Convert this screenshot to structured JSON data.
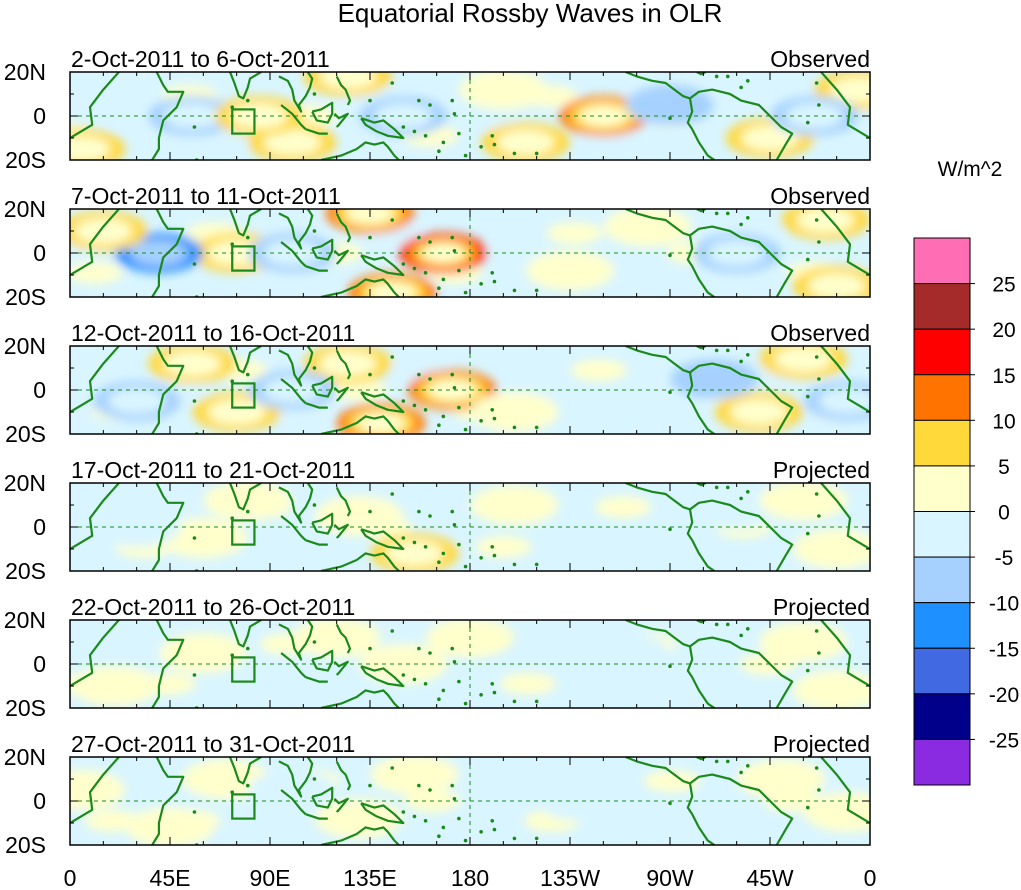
{
  "title": "Equatorial Rossby Waves in OLR",
  "units_label": "W/m^2",
  "lat_labels": [
    "20N",
    "0",
    "20S"
  ],
  "lon_labels": [
    "0",
    "45E",
    "90E",
    "135E",
    "180",
    "135W",
    "90W",
    "45W",
    "0"
  ],
  "panels": [
    {
      "date_range": "2-Oct-2011 to 6-Oct-2011",
      "type": "Observed",
      "strength": 1.0,
      "anomalies": [
        {
          "lon": 240,
          "lat": 0,
          "val": 14
        },
        {
          "lon": 125,
          "lat": 18,
          "val": 10
        },
        {
          "lon": 100,
          "lat": -12,
          "val": 8
        },
        {
          "lon": 205,
          "lat": -12,
          "val": 8
        },
        {
          "lon": 55,
          "lat": 0,
          "val": -9
        },
        {
          "lon": 150,
          "lat": 0,
          "val": -7
        },
        {
          "lon": 195,
          "lat": 12,
          "val": 5
        },
        {
          "lon": 315,
          "lat": -10,
          "val": 6
        },
        {
          "lon": 355,
          "lat": 12,
          "val": 7
        },
        {
          "lon": 335,
          "lat": 0,
          "val": -6
        },
        {
          "lon": 5,
          "lat": -15,
          "val": 8
        },
        {
          "lon": 85,
          "lat": 0,
          "val": 9
        },
        {
          "lon": 270,
          "lat": 5,
          "val": -5
        }
      ]
    },
    {
      "date_range": "7-Oct-2011 to 11-Oct-2011",
      "type": "Observed",
      "strength": 1.0,
      "anomalies": [
        {
          "lon": 168,
          "lat": 0,
          "val": 18
        },
        {
          "lon": 135,
          "lat": 18,
          "val": 11
        },
        {
          "lon": 145,
          "lat": -18,
          "val": 12
        },
        {
          "lon": 75,
          "lat": 0,
          "val": 9
        },
        {
          "lon": 40,
          "lat": 0,
          "val": -10
        },
        {
          "lon": 100,
          "lat": 0,
          "val": -8
        },
        {
          "lon": 225,
          "lat": -8,
          "val": 5
        },
        {
          "lon": 340,
          "lat": 15,
          "val": 10
        },
        {
          "lon": 345,
          "lat": -15,
          "val": 9
        },
        {
          "lon": 300,
          "lat": 0,
          "val": -6
        },
        {
          "lon": 15,
          "lat": 10,
          "val": 6
        },
        {
          "lon": 260,
          "lat": 12,
          "val": 4
        }
      ]
    },
    {
      "date_range": "12-Oct-2011 to 16-Oct-2011",
      "type": "Observed",
      "strength": 1.0,
      "anomalies": [
        {
          "lon": 172,
          "lat": 0,
          "val": 14
        },
        {
          "lon": 140,
          "lat": -15,
          "val": 12
        },
        {
          "lon": 125,
          "lat": 12,
          "val": 7
        },
        {
          "lon": 55,
          "lat": 12,
          "val": 8
        },
        {
          "lon": 75,
          "lat": -10,
          "val": 6
        },
        {
          "lon": 100,
          "lat": 0,
          "val": -7
        },
        {
          "lon": 30,
          "lat": -5,
          "val": -6
        },
        {
          "lon": 330,
          "lat": 14,
          "val": 8
        },
        {
          "lon": 310,
          "lat": -10,
          "val": 6
        },
        {
          "lon": 350,
          "lat": -5,
          "val": -6
        },
        {
          "lon": 200,
          "lat": -10,
          "val": 4
        },
        {
          "lon": 290,
          "lat": 5,
          "val": -5
        }
      ]
    },
    {
      "date_range": "17-Oct-2011 to 21-Oct-2011",
      "type": "Projected",
      "strength": 0.7,
      "anomalies": [
        {
          "lon": 155,
          "lat": -12,
          "val": 7
        },
        {
          "lon": 130,
          "lat": 5,
          "val": 5
        },
        {
          "lon": 80,
          "lat": 12,
          "val": 4
        },
        {
          "lon": 60,
          "lat": -5,
          "val": 5
        },
        {
          "lon": 30,
          "lat": 0,
          "val": -4
        },
        {
          "lon": 110,
          "lat": -10,
          "val": -4
        },
        {
          "lon": 300,
          "lat": 8,
          "val": -4
        },
        {
          "lon": 330,
          "lat": 12,
          "val": 4
        },
        {
          "lon": 345,
          "lat": -10,
          "val": 4
        },
        {
          "lon": 200,
          "lat": 10,
          "val": 3
        }
      ]
    },
    {
      "date_range": "22-Oct-2011 to 26-Oct-2011",
      "type": "Projected",
      "strength": 0.55,
      "anomalies": [
        {
          "lon": 150,
          "lat": 0,
          "val": 5
        },
        {
          "lon": 120,
          "lat": 12,
          "val": 4
        },
        {
          "lon": 60,
          "lat": 5,
          "val": 4
        },
        {
          "lon": 20,
          "lat": -10,
          "val": 4
        },
        {
          "lon": 95,
          "lat": -8,
          "val": -3
        },
        {
          "lon": 250,
          "lat": 5,
          "val": -3
        },
        {
          "lon": 330,
          "lat": 10,
          "val": 3
        },
        {
          "lon": 345,
          "lat": -12,
          "val": 3
        },
        {
          "lon": 180,
          "lat": 12,
          "val": 3
        }
      ]
    },
    {
      "date_range": "27-Oct-2011 to 31-Oct-2011",
      "type": "Projected",
      "strength": 0.5,
      "anomalies": [
        {
          "lon": 130,
          "lat": -8,
          "val": 4
        },
        {
          "lon": 70,
          "lat": 10,
          "val": 4
        },
        {
          "lon": 45,
          "lat": -12,
          "val": 3
        },
        {
          "lon": 155,
          "lat": 12,
          "val": 3
        },
        {
          "lon": 100,
          "lat": 5,
          "val": -3
        },
        {
          "lon": 230,
          "lat": 0,
          "val": -2
        },
        {
          "lon": 320,
          "lat": 10,
          "val": 3
        },
        {
          "lon": 350,
          "lat": -5,
          "val": 3
        },
        {
          "lon": 5,
          "lat": 5,
          "val": 3
        }
      ]
    }
  ],
  "colorbar": {
    "tick_labels": [
      "25",
      "20",
      "15",
      "10",
      "5",
      "0",
      "-5",
      "-10",
      "-15",
      "-20",
      "-25"
    ],
    "levels": [
      {
        "max": 999,
        "color": "#ff6eb4"
      },
      {
        "max": 25,
        "color": "#a52a2a"
      },
      {
        "max": 20,
        "color": "#ff0000"
      },
      {
        "max": 15,
        "color": "#ff7300"
      },
      {
        "max": 10,
        "color": "#ffd93a"
      },
      {
        "max": 5,
        "color": "#ffffcc"
      },
      {
        "max": 0,
        "color": "#d9f5ff"
      },
      {
        "max": -5,
        "color": "#a6d1ff"
      },
      {
        "max": -10,
        "color": "#1e90ff"
      },
      {
        "max": -15,
        "color": "#4169e1"
      },
      {
        "max": -20,
        "color": "#00008b"
      },
      {
        "max": -25,
        "color": "#8a2be2"
      }
    ]
  },
  "colors": {
    "coastline": "#1b8a1b",
    "frame": "#000000",
    "gridline": "#1b8a1b"
  }
}
